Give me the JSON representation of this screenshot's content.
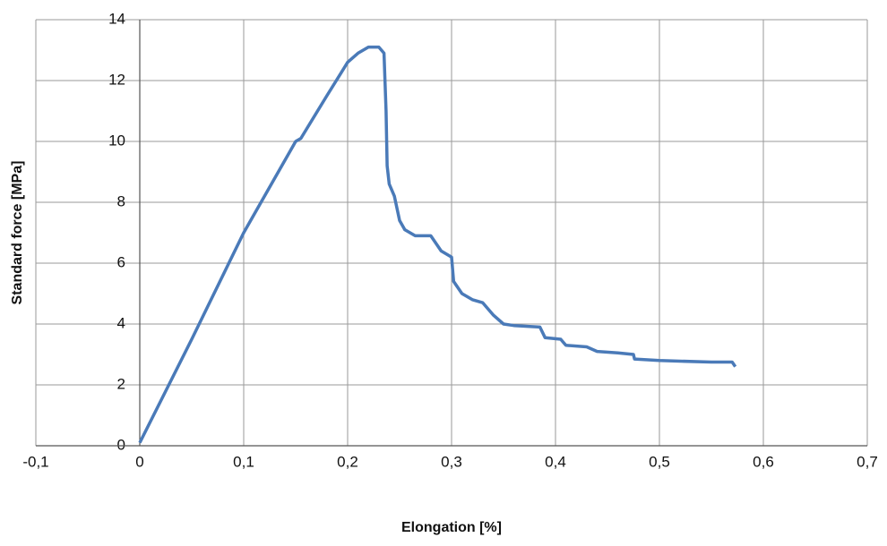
{
  "chart_data": {
    "type": "line",
    "x_label": "Elongation [%]",
    "y_label": "Standard force [MPa]",
    "x": [
      0,
      0.05,
      0.1,
      0.15,
      0.155,
      0.18,
      0.2,
      0.21,
      0.22,
      0.23,
      0.235,
      0.237,
      0.238,
      0.24,
      0.245,
      0.25,
      0.255,
      0.265,
      0.28,
      0.29,
      0.3,
      0.302,
      0.31,
      0.32,
      0.33,
      0.335,
      0.34,
      0.35,
      0.36,
      0.385,
      0.39,
      0.405,
      0.41,
      0.43,
      0.44,
      0.46,
      0.475,
      0.476,
      0.5,
      0.55,
      0.57,
      0.573
    ],
    "values": [
      0.1,
      3.5,
      7,
      10,
      10.1,
      11.5,
      12.6,
      12.9,
      13.1,
      13.1,
      12.9,
      11,
      9.2,
      8.6,
      8.2,
      7.4,
      7.1,
      6.9,
      6.9,
      6.4,
      6.2,
      5.4,
      5.0,
      4.8,
      4.7,
      4.5,
      4.3,
      4.0,
      3.95,
      3.9,
      3.55,
      3.5,
      3.3,
      3.25,
      3.1,
      3.05,
      3.0,
      2.85,
      2.8,
      2.75,
      2.75,
      2.6
    ],
    "color": "#4a7ab8",
    "xlim": [
      -0.1,
      0.7
    ],
    "xticks": [
      {
        "value": -0.1,
        "label": "-0,1"
      },
      0,
      {
        "value": 0.1,
        "label": "0,1"
      },
      {
        "value": 0.2,
        "label": "0,2"
      },
      {
        "value": 0.3,
        "label": "0,3"
      },
      {
        "value": 0.4,
        "label": "0,4"
      },
      {
        "value": 0.5,
        "label": "0,5"
      },
      {
        "value": 0.6,
        "label": "0,6"
      },
      {
        "value": 0.7,
        "label": "0,7"
      }
    ],
    "ylim": [
      0,
      14
    ],
    "yticks": [
      0,
      2,
      4,
      6,
      8,
      10,
      12,
      14
    ],
    "grid": true
  }
}
